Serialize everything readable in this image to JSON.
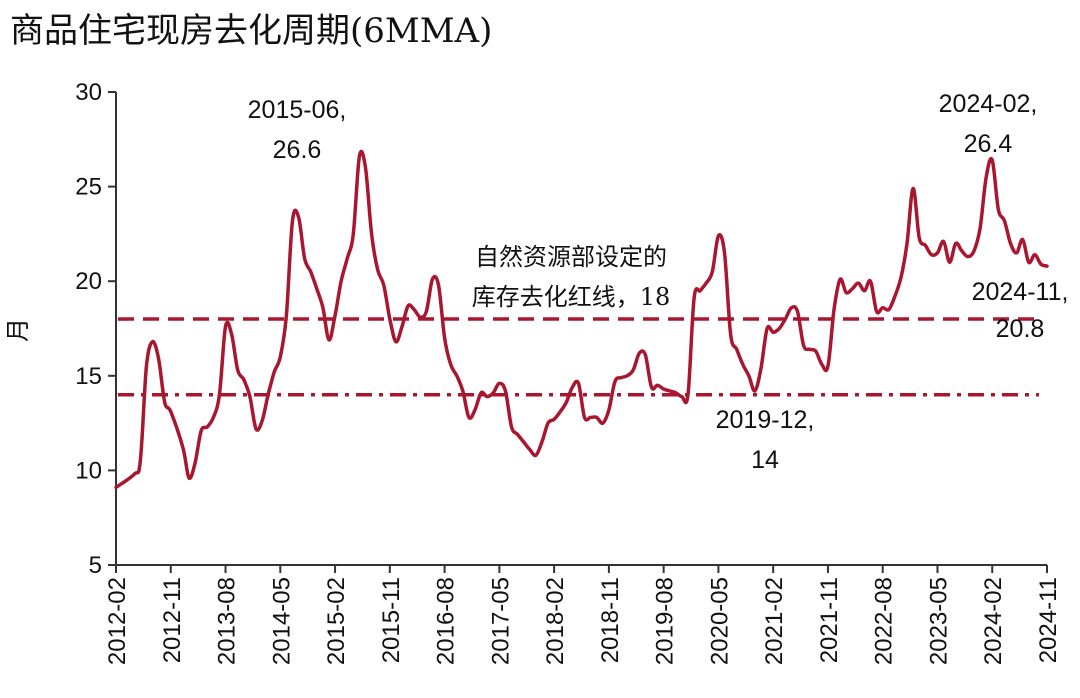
{
  "chart_data": {
    "type": "line",
    "title": "商品住宅现房去化周期(6MMA)",
    "xlabel": "",
    "ylabel": "月",
    "ylim": [
      5,
      30
    ],
    "yticks": [
      5,
      10,
      15,
      20,
      25,
      30
    ],
    "x_start": "2012-02",
    "x_end": "2024-11",
    "xticks": [
      "2012-02",
      "2012-11",
      "2013-08",
      "2014-05",
      "2015-02",
      "2015-11",
      "2016-08",
      "2017-05",
      "2018-02",
      "2018-11",
      "2019-08",
      "2020-05",
      "2021-02",
      "2021-11",
      "2022-08",
      "2023-05",
      "2024-02",
      "2024-11"
    ],
    "series": [
      {
        "name": "商品住宅现房去化周期(6MMA)",
        "color": "#A8172F",
        "points": [
          [
            "2012-02",
            9.1
          ],
          [
            "2012-05",
            9.8
          ],
          [
            "2012-06",
            10.5
          ],
          [
            "2012-07",
            15.5
          ],
          [
            "2012-08",
            16.8
          ],
          [
            "2012-09",
            15.9
          ],
          [
            "2012-10",
            13.6
          ],
          [
            "2012-11",
            13.1
          ],
          [
            "2013-01",
            11.2
          ],
          [
            "2013-02",
            9.6
          ],
          [
            "2013-03",
            10.4
          ],
          [
            "2013-04",
            12.1
          ],
          [
            "2013-05",
            12.3
          ],
          [
            "2013-06",
            12.8
          ],
          [
            "2013-07",
            14.0
          ],
          [
            "2013-08",
            17.6
          ],
          [
            "2013-09",
            17.2
          ],
          [
            "2013-10",
            15.3
          ],
          [
            "2013-11",
            14.8
          ],
          [
            "2013-12",
            13.9
          ],
          [
            "2014-01",
            12.2
          ],
          [
            "2014-02",
            12.6
          ],
          [
            "2014-03",
            14.0
          ],
          [
            "2014-04",
            15.2
          ],
          [
            "2014-05",
            16.0
          ],
          [
            "2014-06",
            18.2
          ],
          [
            "2014-07",
            23.2
          ],
          [
            "2014-08",
            23.4
          ],
          [
            "2014-09",
            21.2
          ],
          [
            "2014-10",
            20.5
          ],
          [
            "2014-11",
            19.6
          ],
          [
            "2014-12",
            18.6
          ],
          [
            "2015-01",
            16.9
          ],
          [
            "2015-02",
            18.2
          ],
          [
            "2015-03",
            20.0
          ],
          [
            "2015-04",
            21.2
          ],
          [
            "2015-05",
            22.5
          ],
          [
            "2015-06",
            26.6
          ],
          [
            "2015-07",
            26.0
          ],
          [
            "2015-08",
            22.5
          ],
          [
            "2015-09",
            20.6
          ],
          [
            "2015-10",
            19.8
          ],
          [
            "2015-11",
            18.0
          ],
          [
            "2015-12",
            16.8
          ],
          [
            "2016-01",
            17.6
          ],
          [
            "2016-02",
            18.7
          ],
          [
            "2016-03",
            18.5
          ],
          [
            "2016-04",
            18.1
          ],
          [
            "2016-05",
            18.4
          ],
          [
            "2016-06",
            20.1
          ],
          [
            "2016-07",
            19.8
          ],
          [
            "2016-08",
            17.0
          ],
          [
            "2016-09",
            15.6
          ],
          [
            "2016-10",
            15.0
          ],
          [
            "2016-11",
            14.2
          ],
          [
            "2016-12",
            12.8
          ],
          [
            "2017-01",
            13.2
          ],
          [
            "2017-02",
            14.1
          ],
          [
            "2017-03",
            13.9
          ],
          [
            "2017-04",
            14.1
          ],
          [
            "2017-05",
            14.6
          ],
          [
            "2017-06",
            14.2
          ],
          [
            "2017-07",
            12.3
          ],
          [
            "2017-08",
            11.9
          ],
          [
            "2017-09",
            11.5
          ],
          [
            "2017-10",
            11.1
          ],
          [
            "2017-11",
            10.8
          ],
          [
            "2017-12",
            11.5
          ],
          [
            "2018-01",
            12.5
          ],
          [
            "2018-02",
            12.7
          ],
          [
            "2018-03",
            13.1
          ],
          [
            "2018-04",
            13.6
          ],
          [
            "2018-05",
            14.4
          ],
          [
            "2018-06",
            14.6
          ],
          [
            "2018-07",
            12.8
          ],
          [
            "2018-08",
            12.8
          ],
          [
            "2018-09",
            12.8
          ],
          [
            "2018-10",
            12.5
          ],
          [
            "2018-11",
            13.2
          ],
          [
            "2018-12",
            14.7
          ],
          [
            "2019-01",
            14.9
          ],
          [
            "2019-02",
            15.0
          ],
          [
            "2019-03",
            15.3
          ],
          [
            "2019-04",
            16.2
          ],
          [
            "2019-05",
            16.1
          ],
          [
            "2019-06",
            14.4
          ],
          [
            "2019-07",
            14.5
          ],
          [
            "2019-08",
            14.3
          ],
          [
            "2019-09",
            14.2
          ],
          [
            "2019-10",
            14.1
          ],
          [
            "2019-11",
            13.9
          ],
          [
            "2019-12",
            14.0
          ],
          [
            "2020-01",
            19.1
          ],
          [
            "2020-02",
            19.5
          ],
          [
            "2020-03",
            19.9
          ],
          [
            "2020-04",
            20.5
          ],
          [
            "2020-05",
            22.4
          ],
          [
            "2020-06",
            21.5
          ],
          [
            "2020-07",
            17.2
          ],
          [
            "2020-08",
            16.4
          ],
          [
            "2020-09",
            15.6
          ],
          [
            "2020-10",
            15.0
          ],
          [
            "2020-11",
            14.2
          ],
          [
            "2020-12",
            15.4
          ],
          [
            "2021-01",
            17.5
          ],
          [
            "2021-02",
            17.3
          ],
          [
            "2021-03",
            17.5
          ],
          [
            "2021-04",
            18.0
          ],
          [
            "2021-05",
            18.6
          ],
          [
            "2021-06",
            18.4
          ],
          [
            "2021-07",
            16.6
          ],
          [
            "2021-08",
            16.4
          ],
          [
            "2021-09",
            16.3
          ],
          [
            "2021-10",
            15.6
          ],
          [
            "2021-11",
            15.5
          ],
          [
            "2021-12",
            18.5
          ],
          [
            "2022-01",
            20.1
          ],
          [
            "2022-02",
            19.4
          ],
          [
            "2022-03",
            19.6
          ],
          [
            "2022-04",
            19.9
          ],
          [
            "2022-05",
            19.5
          ],
          [
            "2022-06",
            20.0
          ],
          [
            "2022-07",
            18.4
          ],
          [
            "2022-08",
            18.6
          ],
          [
            "2022-09",
            18.5
          ],
          [
            "2022-10",
            19.2
          ],
          [
            "2022-11",
            20.2
          ],
          [
            "2022-12",
            22.0
          ],
          [
            "2023-01",
            24.9
          ],
          [
            "2023-02",
            22.3
          ],
          [
            "2023-03",
            21.9
          ],
          [
            "2023-04",
            21.4
          ],
          [
            "2023-05",
            21.5
          ],
          [
            "2023-06",
            22.1
          ],
          [
            "2023-07",
            21.0
          ],
          [
            "2023-08",
            22.0
          ],
          [
            "2023-09",
            21.6
          ],
          [
            "2023-10",
            21.3
          ],
          [
            "2023-11",
            21.6
          ],
          [
            "2023-12",
            22.8
          ],
          [
            "2024-01",
            25.5
          ],
          [
            "2024-02",
            26.4
          ],
          [
            "2024-03",
            23.8
          ],
          [
            "2024-04",
            23.2
          ],
          [
            "2024-05",
            22.0
          ],
          [
            "2024-06",
            21.5
          ],
          [
            "2024-07",
            22.2
          ],
          [
            "2024-08",
            21.0
          ],
          [
            "2024-09",
            21.4
          ],
          [
            "2024-10",
            20.9
          ],
          [
            "2024-11",
            20.8
          ]
        ]
      }
    ],
    "reference_lines": [
      {
        "value": 18,
        "style": "dashed",
        "color": "#A8172F"
      },
      {
        "value": 14,
        "style": "dashdot",
        "color": "#A8172F"
      }
    ],
    "annotations": [
      {
        "lines": [
          "2015-06,",
          "26.6"
        ]
      },
      {
        "lines": [
          "2024-02,",
          "26.4"
        ]
      },
      {
        "lines": [
          "自然资源部设定的",
          "库存去化红线，18"
        ]
      },
      {
        "lines": [
          "2024-11,",
          "20.8"
        ]
      },
      {
        "lines": [
          "2019-12,",
          "14"
        ]
      }
    ]
  }
}
